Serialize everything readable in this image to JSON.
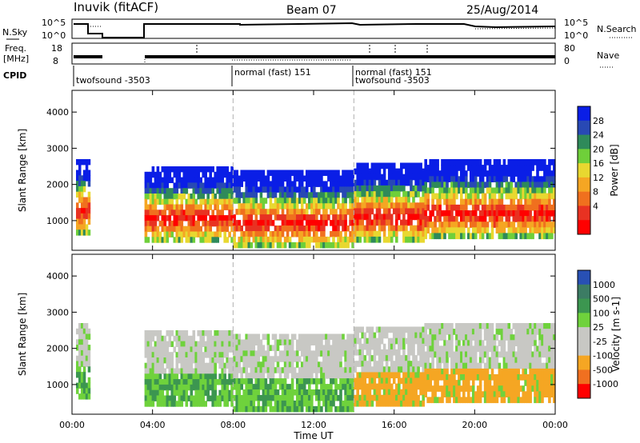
{
  "header": {
    "site": "Inuvik (fitACF)",
    "beam": "Beam 07",
    "date": "25/Aug/2014"
  },
  "top_panels": {
    "nsky_label": "N.Sky",
    "nsky_ticks": [
      "10^5",
      "10^0"
    ],
    "nsearch_label": "N.Search",
    "nsearch_ticks": [
      "10^5",
      "10^0"
    ],
    "freq_label_line1": "Freq.",
    "freq_label_line2": "[MHz]",
    "freq_ticks": [
      "18",
      "8"
    ],
    "nave_label": "Nave",
    "nave_ticks": [
      "80",
      "0"
    ],
    "cpid_label": "CPID",
    "cpid_segments": [
      {
        "label": "twofsound -3503",
        "start_h": 0.0,
        "end_h": 8.0
      },
      {
        "label": "normal (fast) 151",
        "start_h": 8.0,
        "end_h": 14.0
      },
      {
        "label": "normal (fast) 151",
        "start_h": 14.0,
        "end_h": 24.0
      },
      {
        "label": "twofsound -3503",
        "start_h": 14.0,
        "end_h": 24.0
      }
    ]
  },
  "chart_data": [
    {
      "type": "heatmap",
      "name": "power",
      "ylabel": "Slant Range [km]",
      "xlabel": "Time UT",
      "x_ticks": [
        "00:00",
        "04:00",
        "08:00",
        "12:00",
        "16:00",
        "20:00",
        "00:00"
      ],
      "xlim_hours": [
        0,
        24
      ],
      "y_ticks": [
        1000,
        2000,
        3000,
        4000
      ],
      "ylim_km": [
        180,
        4600
      ],
      "colorbar": {
        "label": "Power [dB]",
        "ticks": [
          "28",
          "24",
          "20",
          "16",
          "12",
          "8",
          "4"
        ],
        "colors": [
          "#0a1ee6",
          "#2849b4",
          "#2e8a5a",
          "#6fcf3a",
          "#e8d830",
          "#f5a623",
          "#f0701e",
          "#e83222",
          "#ff0000"
        ]
      },
      "bands": [
        {
          "start_h": 0.2,
          "end_h": 0.9,
          "lo_km": 600,
          "hi_km": 2700
        },
        {
          "start_h": 3.6,
          "end_h": 8.0,
          "lo_km": 400,
          "hi_km": 2500
        },
        {
          "start_h": 8.0,
          "end_h": 14.0,
          "lo_km": 250,
          "hi_km": 2400
        },
        {
          "start_h": 14.0,
          "end_h": 17.5,
          "lo_km": 400,
          "hi_km": 2600
        },
        {
          "start_h": 17.5,
          "end_h": 24.0,
          "lo_km": 500,
          "hi_km": 2700
        }
      ]
    },
    {
      "type": "heatmap",
      "name": "velocity",
      "ylabel": "Slant Range [km]",
      "xlabel": "Time UT",
      "x_ticks": [
        "00:00",
        "04:00",
        "08:00",
        "12:00",
        "16:00",
        "20:00",
        "00:00"
      ],
      "xlim_hours": [
        0,
        24
      ],
      "y_ticks": [
        1000,
        2000,
        3000,
        4000
      ],
      "ylim_km": [
        180,
        4600
      ],
      "colorbar": {
        "label": "Velocity [m s-1]",
        "ticks": [
          "1000",
          "500",
          "100",
          "25",
          "-25",
          "-100",
          "-500",
          "-1000"
        ],
        "colors": [
          "#2850b4",
          "#3c7c64",
          "#3c9650",
          "#6fd23c",
          "#c8c8c4",
          "#c8c8c4",
          "#f5a623",
          "#f07020",
          "#ff0000"
        ]
      },
      "bands": [
        {
          "start_h": 0.2,
          "end_h": 0.9,
          "lo_km": 600,
          "hi_km": 2700
        },
        {
          "start_h": 3.6,
          "end_h": 8.0,
          "lo_km": 400,
          "hi_km": 2500
        },
        {
          "start_h": 8.0,
          "end_h": 14.0,
          "lo_km": 250,
          "hi_km": 2400
        },
        {
          "start_h": 14.0,
          "end_h": 17.5,
          "lo_km": 400,
          "hi_km": 2600
        },
        {
          "start_h": 17.5,
          "end_h": 24.0,
          "lo_km": 500,
          "hi_km": 2700
        }
      ]
    }
  ]
}
